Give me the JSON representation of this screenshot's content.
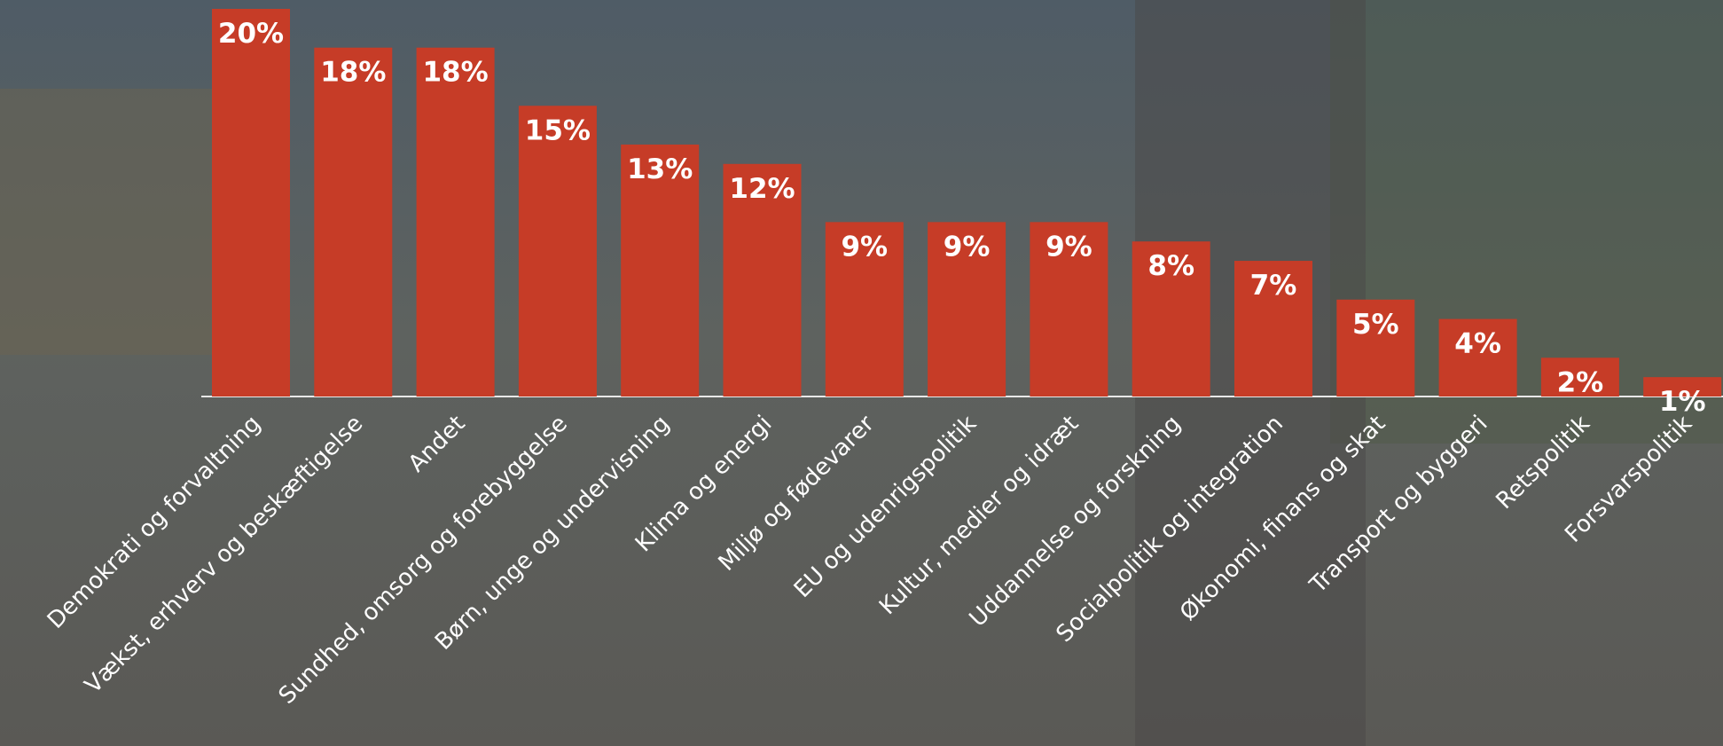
{
  "chart_data": {
    "type": "bar",
    "categories": [
      "Demokrati og forvaltning",
      "Vækst, erhverv og beskæftigelse",
      "Andet",
      "Sundhed, omsorg og forebyggelse",
      "Børn, unge og undervisning",
      "Klima og energi",
      "Miljø og fødevarer",
      "EU og udenrigspolitik",
      "Kultur, medier og idræt",
      "Uddannelse og forskning",
      "Socialpolitik og integration",
      "Økonomi, finans og skat",
      "Transport og byggeri",
      "Retspolitik",
      "Forsvarspolitik"
    ],
    "values": [
      20,
      18,
      18,
      15,
      13,
      12,
      9,
      9,
      9,
      8,
      7,
      5,
      4,
      2,
      1
    ],
    "value_labels": [
      "20%",
      "18%",
      "18%",
      "15%",
      "13%",
      "12%",
      "9%",
      "9%",
      "9%",
      "8%",
      "7%",
      "5%",
      "4%",
      "2%",
      "1%"
    ],
    "color": "#c63c27",
    "ylim": [
      0,
      20
    ]
  }
}
